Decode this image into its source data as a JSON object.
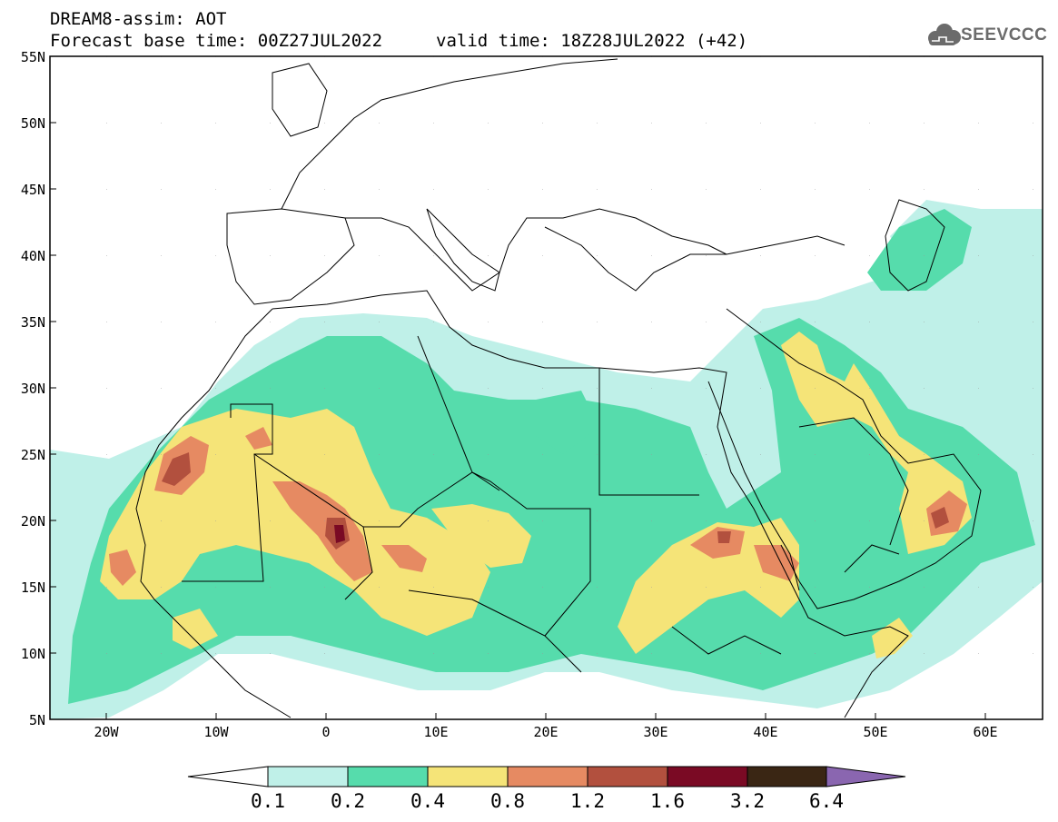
{
  "header": {
    "line1": "DREAM8-assim: AOT",
    "line2": "Forecast base time: 00Z27JUL2022",
    "valid": "valid time: 18Z28JUL2022 (+42)",
    "logo_text": "SEEVCCC",
    "logo_icon": "cloud-icon"
  },
  "axes": {
    "lat_labels": [
      "55N",
      "50N",
      "45N",
      "40N",
      "35N",
      "30N",
      "25N",
      "20N",
      "15N",
      "10N",
      "5N"
    ],
    "lon_labels": [
      "20W",
      "10W",
      "0",
      "10E",
      "20E",
      "30E",
      "40E",
      "50E",
      "60E"
    ]
  },
  "colorbar": {
    "levels": [
      "0.1",
      "0.2",
      "0.4",
      "0.8",
      "1.2",
      "1.6",
      "3.2",
      "6.4"
    ],
    "colors": [
      "#bff0e8",
      "#56dcac",
      "#f5e478",
      "#e68a62",
      "#b2503e",
      "#7a0a24",
      "#3a2614",
      "#8a66b0"
    ]
  }
}
